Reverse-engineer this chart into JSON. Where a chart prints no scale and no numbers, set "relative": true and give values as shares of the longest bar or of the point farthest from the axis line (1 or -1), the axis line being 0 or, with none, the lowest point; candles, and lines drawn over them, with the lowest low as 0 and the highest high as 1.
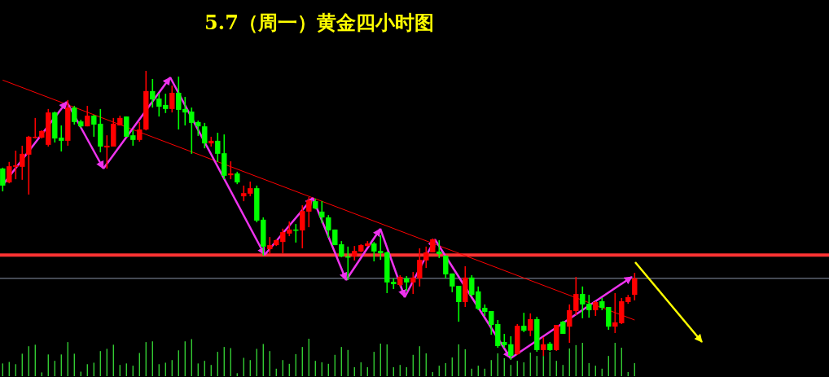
{
  "chart_data": [
    {
      "type": "candlestick",
      "title": "5.7（周一）黄金四小时图",
      "relative": true,
      "legend": false,
      "grid": false,
      "categories": [
        null,
        null,
        null,
        null,
        null,
        null,
        null,
        null,
        null,
        null,
        null,
        null,
        null,
        null,
        null,
        null,
        null,
        null,
        null,
        null,
        null,
        null,
        null,
        null,
        null,
        null,
        null,
        null,
        null,
        null,
        null,
        null,
        null,
        null,
        null,
        null,
        null,
        null,
        null,
        null,
        null,
        null,
        null,
        null,
        null,
        null,
        null,
        null,
        null,
        null,
        null,
        null,
        null,
        null,
        null,
        null,
        null,
        null,
        null,
        null,
        null,
        null,
        null,
        null,
        null,
        null,
        null,
        null,
        null,
        null,
        null,
        null,
        null,
        null,
        null,
        null,
        null,
        null,
        null,
        null,
        null,
        null,
        null,
        null,
        null,
        null,
        null,
        null,
        null,
        null,
        null,
        null,
        null,
        null,
        null,
        null,
        null,
        null
      ],
      "ohlc": [
        [
          0.662,
          0.665,
          0.583,
          0.603
        ],
        [
          0.614,
          0.685,
          0.611,
          0.67
        ],
        [
          0.668,
          0.724,
          0.625,
          0.673
        ],
        [
          0.668,
          0.741,
          0.623,
          0.713
        ],
        [
          0.71,
          0.775,
          0.572,
          0.772
        ],
        [
          0.769,
          0.837,
          0.766,
          0.772
        ],
        [
          0.769,
          0.794,
          0.766,
          0.792
        ],
        [
          0.744,
          0.868,
          0.738,
          0.856
        ],
        [
          0.856,
          0.859,
          0.752,
          0.766
        ],
        [
          0.769,
          0.811,
          0.721,
          0.758
        ],
        [
          0.758,
          0.899,
          0.741,
          0.873
        ],
        [
          0.873,
          0.879,
          0.814,
          0.823
        ],
        [
          0.825,
          0.831,
          0.803,
          0.808
        ],
        [
          0.808,
          0.879,
          0.808,
          0.845
        ],
        [
          0.845,
          0.848,
          0.772,
          0.814
        ],
        [
          0.817,
          0.868,
          0.718,
          0.738
        ],
        [
          0.735,
          0.777,
          0.662,
          0.741
        ],
        [
          0.738,
          0.837,
          0.738,
          0.817
        ],
        [
          0.811,
          0.845,
          0.811,
          0.837
        ],
        [
          0.842,
          0.842,
          0.772,
          0.772
        ],
        [
          0.777,
          0.794,
          0.741,
          0.761
        ],
        [
          0.761,
          0.823,
          0.755,
          0.797
        ],
        [
          0.797,
          1,
          0.794,
          0.93
        ],
        [
          0.93,
          0.972,
          0.873,
          0.901
        ],
        [
          0.904,
          0.921,
          0.842,
          0.876
        ],
        [
          0.882,
          0.921,
          0.854,
          0.868
        ],
        [
          0.868,
          0.949,
          0.856,
          0.924
        ],
        [
          0.924,
          0.98,
          0.797,
          0.865
        ],
        [
          0.868,
          0.91,
          0.811,
          0.856
        ],
        [
          0.859,
          0.873,
          0.713,
          0.82
        ],
        [
          0.823,
          0.828,
          0.775,
          0.808
        ],
        [
          0.808,
          0.82,
          0.732,
          0.749
        ],
        [
          0.749,
          0.772,
          0.738,
          0.758
        ],
        [
          0.758,
          0.786,
          0.685,
          0.713
        ],
        [
          0.715,
          0.78,
          0.625,
          0.637
        ],
        [
          0.639,
          0.687,
          0.625,
          0.645
        ],
        [
          0.645,
          0.651,
          0.608,
          0.614
        ],
        [
          0.566,
          0.603,
          0.549,
          0.577
        ],
        [
          0.575,
          0.617,
          0.566,
          0.594
        ],
        [
          0.594,
          0.603,
          0.476,
          0.482
        ],
        [
          0.485,
          0.493,
          0.361,
          0.392
        ],
        [
          0.383,
          0.425,
          0.366,
          0.397
        ],
        [
          0.397,
          0.417,
          0.394,
          0.414
        ],
        [
          0.408,
          0.454,
          0.369,
          0.442
        ],
        [
          0.437,
          0.479,
          0.428,
          0.451
        ],
        [
          0.451,
          0.47,
          0.406,
          0.448
        ],
        [
          0.448,
          0.535,
          0.386,
          0.515
        ],
        [
          0.513,
          0.563,
          0.459,
          0.552
        ],
        [
          0.549,
          0.558,
          0.521,
          0.524
        ],
        [
          0.513,
          0.549,
          0.473,
          0.493
        ],
        [
          0.493,
          0.501,
          0.423,
          0.448
        ],
        [
          0.451,
          0.451,
          0.397,
          0.397
        ],
        [
          0.4,
          0.411,
          0.355,
          0.358
        ],
        [
          0.358,
          0.392,
          0.276,
          0.355
        ],
        [
          0.358,
          0.394,
          0.344,
          0.377
        ],
        [
          0.375,
          0.4,
          0.372,
          0.397
        ],
        [
          0.394,
          0.411,
          0.392,
          0.403
        ],
        [
          0.403,
          0.408,
          0.341,
          0.375
        ],
        [
          0.377,
          0.431,
          0.346,
          0.369
        ],
        [
          0.372,
          0.375,
          0.231,
          0.268
        ],
        [
          0.27,
          0.282,
          0.245,
          0.262
        ],
        [
          0.259,
          0.293,
          0.254,
          0.287
        ],
        [
          0.282,
          0.29,
          0.239,
          0.268
        ],
        [
          0.268,
          0.304,
          0.228,
          0.285
        ],
        [
          0.282,
          0.386,
          0.254,
          0.346
        ],
        [
          0.344,
          0.392,
          0.318,
          0.372
        ],
        [
          0.372,
          0.42,
          0.372,
          0.417
        ],
        [
          0.375,
          0.414,
          0.352,
          0.366
        ],
        [
          0.361,
          0.361,
          0.282,
          0.296
        ],
        [
          0.299,
          0.299,
          0.234,
          0.254
        ],
        [
          0.256,
          0.256,
          0.132,
          0.2
        ],
        [
          0.2,
          0.324,
          0.183,
          0.285
        ],
        [
          0.285,
          0.293,
          0.22,
          0.225
        ],
        [
          0.237,
          0.254,
          0.172,
          0.177
        ],
        [
          0.18,
          0.192,
          0.152,
          0.166
        ],
        [
          0.169,
          0.169,
          0.087,
          0.121
        ],
        [
          0.124,
          0.138,
          0.042,
          0.048
        ],
        [
          0.062,
          0.09,
          0.042,
          0.051
        ],
        [
          0.054,
          0.082,
          0,
          0.014
        ],
        [
          0.02,
          0.124,
          0.017,
          0.118
        ],
        [
          0.118,
          0.163,
          0.096,
          0.101
        ],
        [
          0.101,
          0.161,
          0.082,
          0.141
        ],
        [
          0.141,
          0.149,
          0.028,
          0.034
        ],
        [
          0.034,
          0.079,
          0.014,
          0.054
        ],
        [
          0.056,
          0.062,
          0.031,
          0.034
        ],
        [
          0.034,
          0.121,
          0.031,
          0.121
        ],
        [
          0.132,
          0.135,
          0.09,
          0.09
        ],
        [
          0.115,
          0.192,
          0.059,
          0.172
        ],
        [
          0.169,
          0.287,
          0.155,
          0.228
        ],
        [
          0.228,
          0.254,
          0.144,
          0.192
        ],
        [
          0.194,
          0.225,
          0.146,
          0.172
        ],
        [
          0.172,
          0.203,
          0.152,
          0.2
        ],
        [
          0.203,
          0.214,
          0.172,
          0.18
        ],
        [
          0.183,
          0.183,
          0.104,
          0.115
        ],
        [
          0.115,
          0.231,
          0.093,
          0.13
        ],
        [
          0.127,
          0.214,
          0.124,
          0.203
        ],
        [
          0.2,
          0.225,
          0.194,
          0.217
        ],
        [
          0.225,
          0.301,
          0.206,
          0.282
        ]
      ],
      "colors": [
        "#00ff00",
        "#ff0000",
        "#ff0000",
        "#ff0000",
        "#ff0000",
        "#ff0000",
        "#ff0000",
        "#ff0000",
        "#00ff00",
        "#00ff00",
        "#ff0000",
        "#00ff00",
        "#00ff00",
        "#ff0000",
        "#00ff00",
        "#00ff00",
        "#ff0000",
        "#ff0000",
        "#ff0000",
        "#00ff00",
        "#00ff00",
        "#ff0000",
        "#ff0000",
        "#00ff00",
        "#00ff00",
        "#00ff00",
        "#ff0000",
        "#00ff00",
        "#00ff00",
        "#00ff00",
        "#00ff00",
        "#00ff00",
        "#ff0000",
        "#00ff00",
        "#00ff00",
        "#ff0000",
        "#00ff00",
        "#ff0000",
        "#ff0000",
        "#00ff00",
        "#00ff00",
        "#ff0000",
        "#ff0000",
        "#ff0000",
        "#ff0000",
        "#00ff00",
        "#ff0000",
        "#ff0000",
        "#00ff00",
        "#00ff00",
        "#00ff00",
        "#00ff00",
        "#00ff00",
        "#00ff00",
        "#ff0000",
        "#ff0000",
        "#ff0000",
        "#00ff00",
        "#00ff00",
        "#00ff00",
        "#00ff00",
        "#ff0000",
        "#00ff00",
        "#ff0000",
        "#ff0000",
        "#ff0000",
        "#ff0000",
        "#00ff00",
        "#00ff00",
        "#00ff00",
        "#00ff00",
        "#ff0000",
        "#00ff00",
        "#00ff00",
        "#00ff00",
        "#00ff00",
        "#00ff00",
        "#00ff00",
        "#00ff00",
        "#ff0000",
        "#00ff00",
        "#ff0000",
        "#00ff00",
        "#ff0000",
        "#00ff00",
        "#ff0000",
        "#00ff00",
        "#ff0000",
        "#ff0000",
        "#00ff00",
        "#00ff00",
        "#ff0000",
        "#00ff00",
        "#00ff00",
        "#ff0000",
        "#ff0000",
        "#ff0000",
        "#ff0000"
      ],
      "series": [
        {
          "type": "line",
          "color": "#ff0000",
          "values": [
            0.968,
            null,
            null,
            null,
            null,
            null,
            null,
            null,
            null,
            null,
            null,
            null,
            null,
            null,
            null,
            null,
            null,
            null,
            null,
            null,
            null,
            null,
            null,
            null,
            null,
            null,
            null,
            null,
            null,
            null,
            null,
            null,
            null,
            null,
            null,
            null,
            null,
            null,
            null,
            null,
            null,
            null,
            null,
            null,
            null,
            null,
            null,
            null,
            null,
            null,
            null,
            null,
            null,
            null,
            null,
            null,
            null,
            null,
            null,
            null,
            null,
            null,
            null,
            null,
            null,
            null,
            null,
            null,
            null,
            null,
            null,
            null,
            null,
            null,
            null,
            null,
            null,
            null,
            null,
            null,
            null,
            null,
            null,
            null,
            null,
            null,
            null,
            null,
            null,
            null,
            null,
            null,
            null,
            null,
            null,
            null,
            null,
            0.138
          ]
        }
      ],
      "ref_lines": [
        {
          "axis": "y",
          "value": 0.282,
          "color": "#8a96a8"
        },
        {
          "axis": "y",
          "value": 0.363,
          "color": "#ff3333"
        }
      ]
    },
    {
      "type": "bar",
      "relative": true,
      "color": "#33cc33",
      "categories": [
        null,
        null,
        null,
        null,
        null,
        null,
        null,
        null,
        null,
        null,
        null,
        null,
        null,
        null,
        null,
        null,
        null,
        null,
        null,
        null,
        null,
        null,
        null,
        null,
        null,
        null,
        null,
        null,
        null,
        null,
        null,
        null,
        null,
        null,
        null,
        null,
        null,
        null,
        null,
        null,
        null,
        null,
        null,
        null,
        null,
        null,
        null,
        null,
        null,
        null,
        null,
        null,
        null,
        null,
        null,
        null,
        null,
        null,
        null,
        null,
        null,
        null,
        null,
        null,
        null,
        null,
        null,
        null,
        null,
        null,
        null,
        null,
        null,
        null,
        null,
        null,
        null,
        null,
        null,
        null,
        null,
        null,
        null,
        null,
        null,
        null,
        null,
        null,
        null,
        null,
        null,
        null,
        null,
        null,
        null,
        null,
        null,
        null
      ],
      "values": [
        0.34,
        0.38,
        0.32,
        0.6,
        0.8,
        0.84,
        0.1,
        0.58,
        0.41,
        0.58,
        0.91,
        0.6,
        0.12,
        0.32,
        0.36,
        0.67,
        0.73,
        0.84,
        0.3,
        0.34,
        0.28,
        0.62,
        0.91,
        0.93,
        0.32,
        0.36,
        0.43,
        0.69,
        0.93,
        0.99,
        0.34,
        0.41,
        0.3,
        0.65,
        0.78,
        0.75,
        0.08,
        0.49,
        0.43,
        0.73,
        0.86,
        0.67,
        0.2,
        0.43,
        0.33,
        0.59,
        0.78,
        1,
        0.41,
        0.37,
        0.33,
        0.57,
        0.78,
        0.7,
        0.24,
        0.37,
        0.24,
        0.65,
        0.87,
        0.85,
        0.24,
        0.3,
        0.24,
        0.57,
        0.8,
        0.61,
        0.11,
        0.28,
        0.35,
        0.5,
        0.85,
        0.72,
        0.2,
        0.28,
        0.2,
        0.43,
        0.61,
        0.48,
        0.3,
        0.41,
        0.37,
        0.63,
        0.54,
        0.54,
        0.65,
        0.41,
        0.3,
        0.74,
        0.83,
        0.89,
        0.35,
        0.28,
        0.2,
        0.54,
        0.89,
        0.76,
        0.11,
        0.35
      ]
    }
  ]
}
